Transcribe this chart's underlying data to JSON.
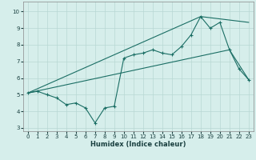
{
  "xlabel": "Humidex (Indice chaleur)",
  "xlim": [
    -0.5,
    23.5
  ],
  "ylim": [
    2.8,
    10.6
  ],
  "yticks": [
    3,
    4,
    5,
    6,
    7,
    8,
    9,
    10
  ],
  "xticks": [
    0,
    1,
    2,
    3,
    4,
    5,
    6,
    7,
    8,
    9,
    10,
    11,
    12,
    13,
    14,
    15,
    16,
    17,
    18,
    19,
    20,
    21,
    22,
    23
  ],
  "bg_color": "#d6eeeb",
  "grid_color": "#b8d8d4",
  "line_color": "#1a6e64",
  "line1_x": [
    0,
    1,
    2,
    3,
    4,
    5,
    6,
    7,
    8,
    9,
    10,
    11,
    12,
    13,
    14,
    15,
    16,
    17,
    18,
    19,
    20,
    21,
    22,
    23
  ],
  "line1_y": [
    5.1,
    5.2,
    5.0,
    4.8,
    4.4,
    4.5,
    4.2,
    3.3,
    4.2,
    4.3,
    7.2,
    7.4,
    7.5,
    7.7,
    7.5,
    7.4,
    7.9,
    8.6,
    9.7,
    9.0,
    9.35,
    7.7,
    6.55,
    5.9
  ],
  "line2_x": [
    0,
    18,
    23
  ],
  "line2_y": [
    5.1,
    9.7,
    9.35
  ],
  "line3_x": [
    0,
    21,
    23
  ],
  "line3_y": [
    5.1,
    7.7,
    5.9
  ]
}
